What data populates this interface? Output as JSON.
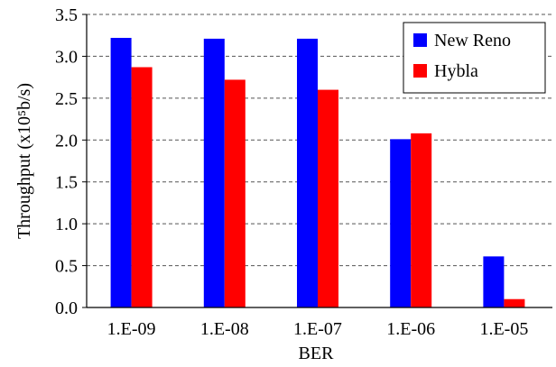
{
  "chart_data": {
    "type": "bar",
    "title": "",
    "xlabel": "BER",
    "ylabel": "Throughput (x10⁵b/s)",
    "ylim": [
      0,
      3.5
    ],
    "yticks": [
      "0.0",
      "0.5",
      "1.0",
      "1.5",
      "2.0",
      "2.5",
      "3.0",
      "3.5"
    ],
    "categories": [
      "1.E-09",
      "1.E-08",
      "1.E-07",
      "1.E-06",
      "1.E-05"
    ],
    "series": [
      {
        "name": "New Reno",
        "color": "#0000ff",
        "values": [
          3.22,
          3.21,
          3.21,
          2.01,
          0.61
        ]
      },
      {
        "name": "Hybla",
        "color": "#ff0000",
        "values": [
          2.87,
          2.72,
          2.6,
          2.08,
          0.1
        ]
      }
    ],
    "grid": "horizontal dashed",
    "legend_position": "top-right"
  }
}
